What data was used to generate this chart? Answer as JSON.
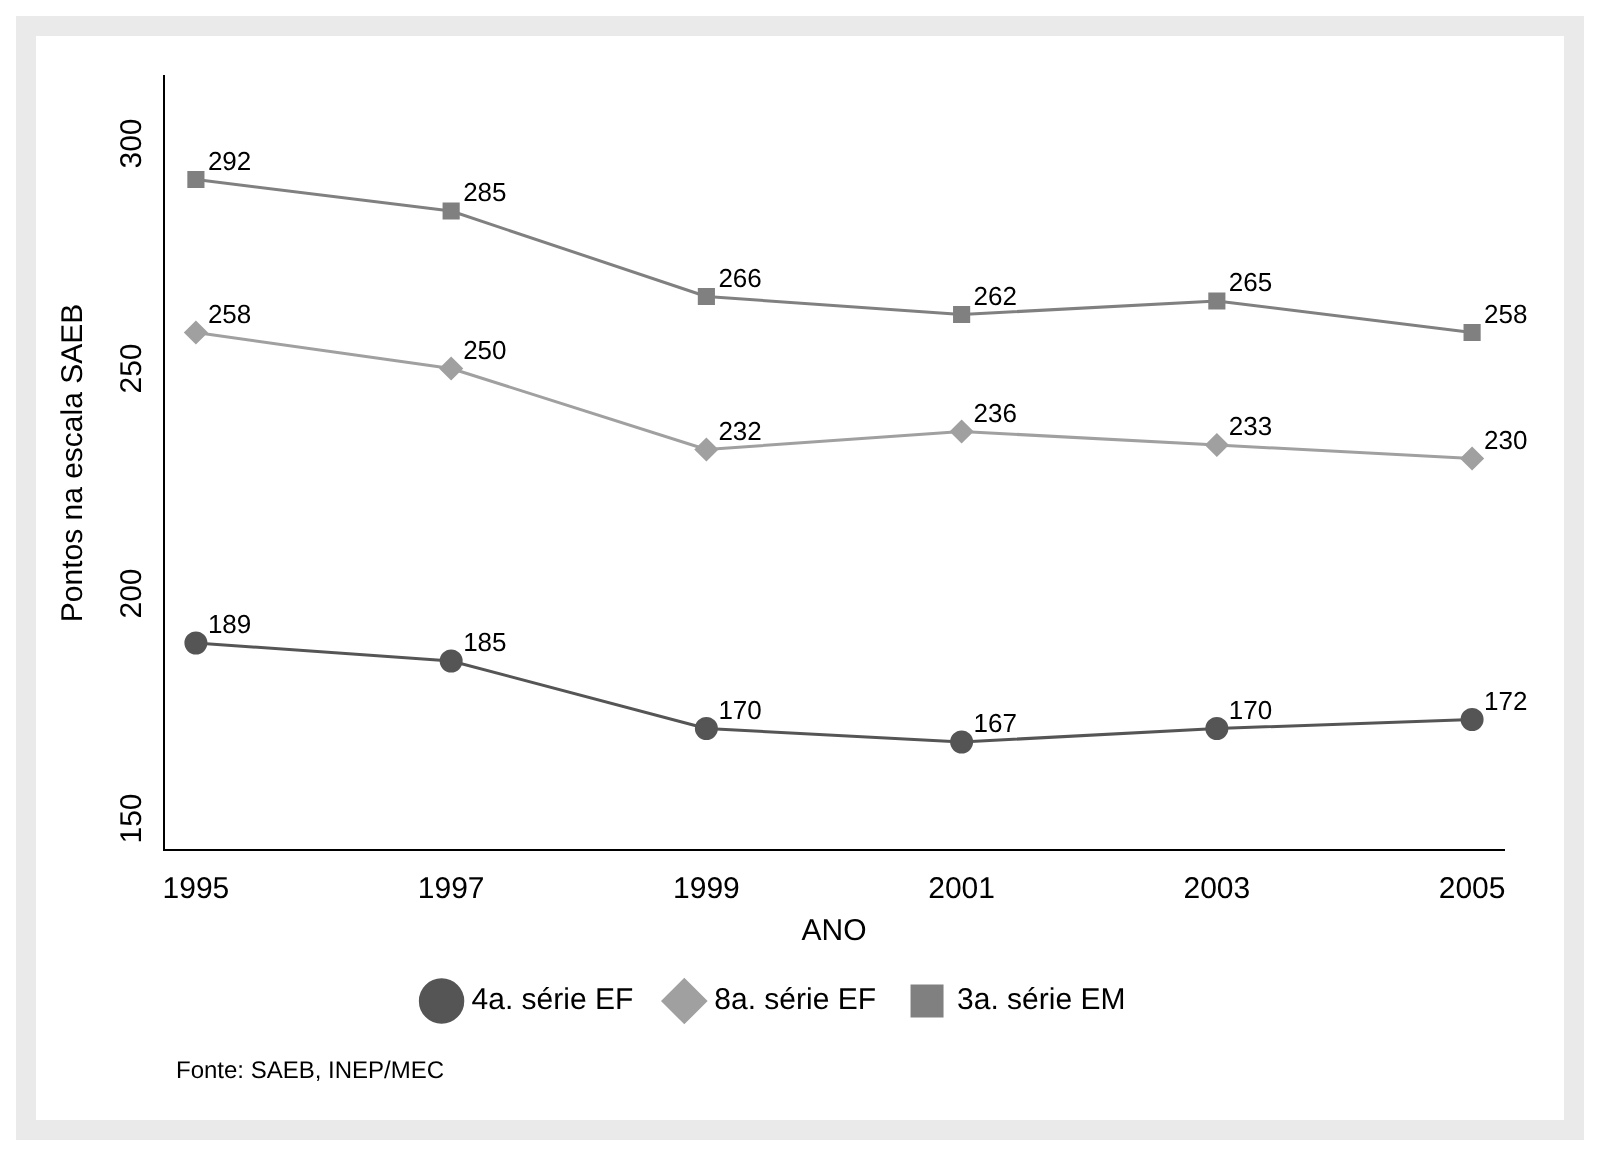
{
  "chart_data": {
    "type": "line",
    "xlabel": "ANO",
    "ylabel": "Pontos na escala SAEB",
    "x": [
      1995,
      1997,
      1999,
      2001,
      2003,
      2005
    ],
    "xlim": [
      1994.75,
      2005.25
    ],
    "xticks": [
      1995,
      1997,
      1999,
      2001,
      2003,
      2005
    ],
    "ylim": [
      143,
      315
    ],
    "yticks": [
      150,
      200,
      250,
      300
    ],
    "series": [
      {
        "name": "4a. série EF",
        "color": "#555555",
        "marker": "circle",
        "values": [
          189,
          185,
          170,
          167,
          170,
          172
        ]
      },
      {
        "name": "8a. série EF",
        "color": "#a0a0a0",
        "marker": "diamond",
        "values": [
          258,
          250,
          232,
          236,
          233,
          230
        ]
      },
      {
        "name": "3a. série EM",
        "color": "#808080",
        "marker": "square",
        "values": [
          292,
          285,
          266,
          262,
          265,
          258
        ]
      }
    ],
    "data_labels": true,
    "legend": "bottom",
    "line_style": "solid",
    "annotations": [
      "Fonte: SAEB, INEP/MEC"
    ]
  }
}
